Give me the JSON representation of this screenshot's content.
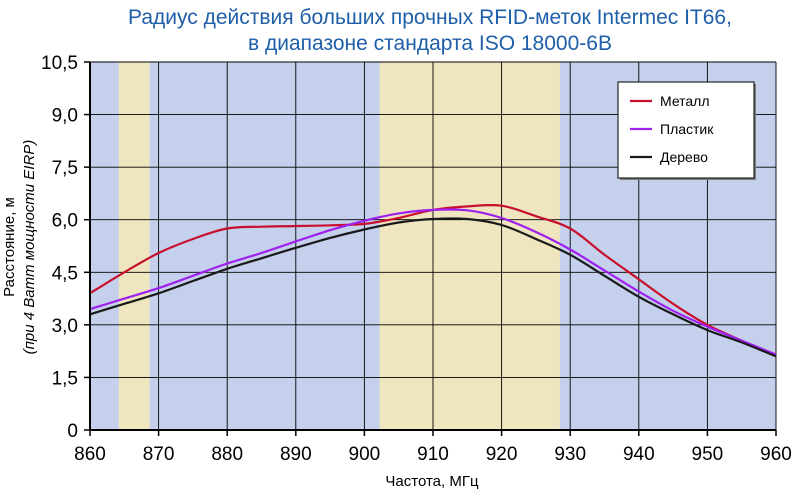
{
  "chart_data": {
    "type": "line",
    "title_lines": [
      "Радиус действия больших прочных RFID-меток Intermec IT66,",
      "в диапазоне стандарта ISO 18000-6B"
    ],
    "xlabel": "Частота, МГц",
    "ylabel_lines": [
      "Расстояние, м",
      "(при 4 Ватт мощности EIRP)"
    ],
    "xlim": [
      860,
      960
    ],
    "ylim": [
      0,
      10.5
    ],
    "x_ticks": [
      860,
      870,
      880,
      890,
      900,
      910,
      920,
      930,
      940,
      950,
      960
    ],
    "x_tick_labels": [
      "860",
      "870",
      "880",
      "890",
      "900",
      "910",
      "920",
      "930",
      "940",
      "950",
      "960"
    ],
    "y_ticks": [
      0,
      1.5,
      3.0,
      4.5,
      6.0,
      7.5,
      9.0,
      10.5
    ],
    "y_tick_labels": [
      "0",
      "1,5",
      "3,0",
      "4,5",
      "6,0",
      "7,5",
      "9,0",
      "10,5"
    ],
    "grid": true,
    "legend_position": "top-right",
    "bands": [
      {
        "from": 864.2,
        "to": 868.7,
        "color": "#efe6c0"
      },
      {
        "from": 902.2,
        "to": 928.5,
        "color": "#efe6c0"
      }
    ],
    "background_color": "#c5d0ec",
    "series": [
      {
        "name": "Металл",
        "color": "#c8102e",
        "x": [
          860,
          865,
          870,
          875,
          880,
          885,
          890,
          895,
          900,
          905,
          910,
          915,
          920,
          925,
          930,
          935,
          940,
          945,
          950,
          955,
          960
        ],
        "y": [
          3.9,
          4.5,
          5.05,
          5.45,
          5.75,
          5.8,
          5.82,
          5.84,
          5.88,
          6.05,
          6.28,
          6.38,
          6.4,
          6.1,
          5.75,
          5.0,
          4.3,
          3.6,
          3.0,
          2.55,
          2.15
        ]
      },
      {
        "name": "Пластик",
        "color": "#a020f0",
        "x": [
          860,
          865,
          870,
          875,
          880,
          885,
          890,
          895,
          900,
          905,
          910,
          915,
          920,
          925,
          930,
          935,
          940,
          945,
          950,
          955,
          960
        ],
        "y": [
          3.45,
          3.75,
          4.05,
          4.4,
          4.75,
          5.05,
          5.38,
          5.7,
          5.97,
          6.18,
          6.28,
          6.27,
          6.05,
          5.65,
          5.15,
          4.55,
          3.95,
          3.4,
          2.95,
          2.55,
          2.15
        ]
      },
      {
        "name": "Дерево",
        "color": "#1a1a1a",
        "x": [
          860,
          865,
          870,
          875,
          880,
          885,
          890,
          895,
          900,
          905,
          910,
          915,
          920,
          925,
          930,
          935,
          940,
          945,
          950,
          955,
          960
        ],
        "y": [
          3.3,
          3.6,
          3.9,
          4.25,
          4.6,
          4.9,
          5.2,
          5.48,
          5.72,
          5.92,
          6.02,
          6.02,
          5.85,
          5.45,
          5.0,
          4.4,
          3.8,
          3.3,
          2.85,
          2.5,
          2.1
        ]
      }
    ]
  }
}
